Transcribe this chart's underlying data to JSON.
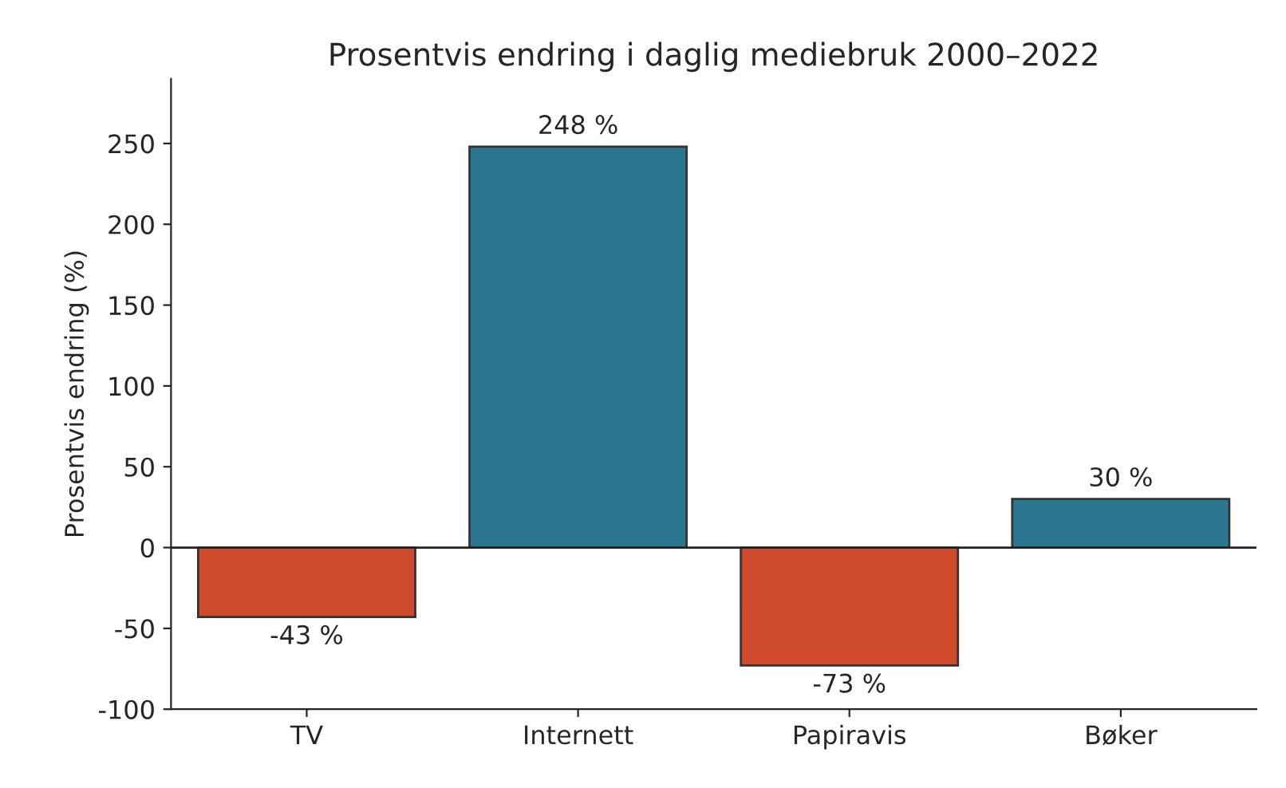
{
  "chart_data": {
    "type": "bar",
    "title": "Prosentvis endring i daglig mediebruk 2000–2022",
    "ylabel": "Prosentvis endring (%)",
    "categories": [
      "TV",
      "Internett",
      "Papiravis",
      "Bøker"
    ],
    "values": [
      -43,
      248,
      -73,
      30
    ],
    "colors": [
      "#cf4a2a",
      "#2b7691",
      "#cf4a2a",
      "#2b7691"
    ],
    "value_labels": [
      "-43 %",
      "248 %",
      "-73 %",
      "30 %"
    ],
    "ylim": [
      -100,
      290
    ],
    "yticks": [
      -100,
      -50,
      0,
      50,
      100,
      150,
      200,
      250
    ],
    "ref_lines": [
      {
        "axis": "y",
        "value": 0,
        "color": "#222222"
      }
    ],
    "grid": false,
    "legend": false
  }
}
